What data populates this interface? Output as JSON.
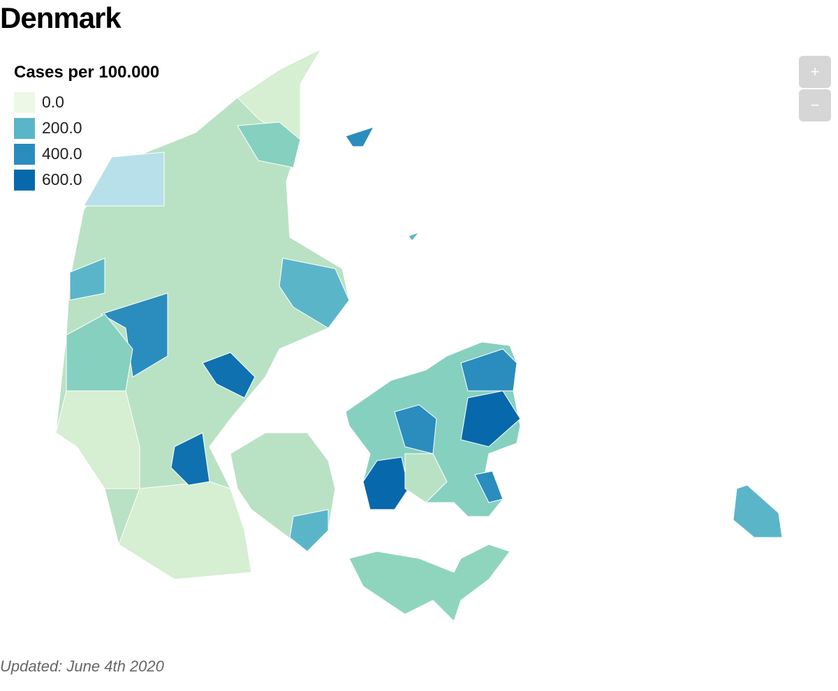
{
  "title": "Denmark",
  "legend": {
    "title": "Cases per 100.000",
    "items": [
      {
        "label": "0.0",
        "color": "#edf8e6"
      },
      {
        "label": "200.0",
        "color": "#5bb5c9"
      },
      {
        "label": "400.0",
        "color": "#2b8cbe"
      },
      {
        "label": "600.0",
        "color": "#0868ac"
      }
    ]
  },
  "controls": {
    "zoom_in": "+",
    "zoom_out": "−"
  },
  "footer": "Updated: June 4th 2020"
}
